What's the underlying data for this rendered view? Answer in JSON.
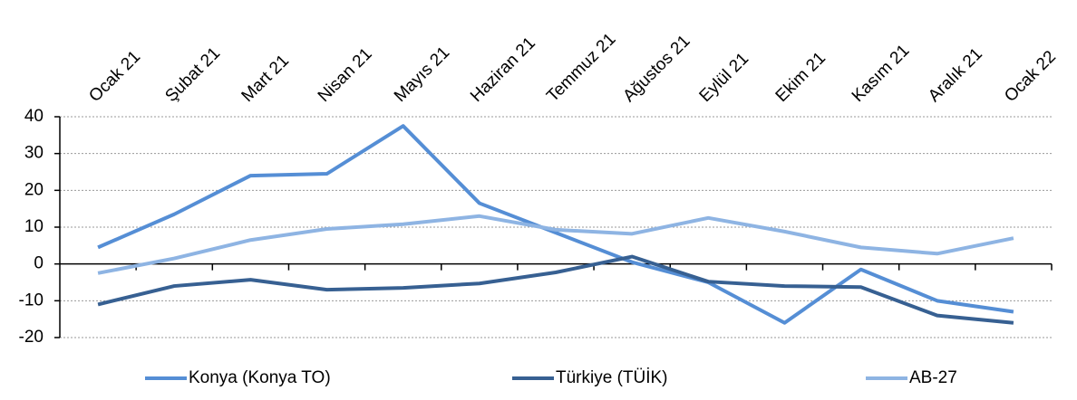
{
  "chart_data": {
    "type": "line",
    "categories": [
      "Ocak 21",
      "Şubat 21",
      "Mart 21",
      "Nisan 21",
      "Mayıs 21",
      "Haziran 21",
      "Temmuz 21",
      "Ağustos 21",
      "Eylül 21",
      "Ekim 21",
      "Kasım 21",
      "Aralık 21",
      "Ocak 22"
    ],
    "series": [
      {
        "name": "Konya (Konya TO)",
        "color": "#558ed5",
        "values": [
          4.5,
          13.5,
          24,
          24.5,
          37.5,
          16.5,
          8.5,
          0.5,
          -5,
          -16,
          -1.5,
          -10,
          -13
        ]
      },
      {
        "name": "Türkiye (TÜİK)",
        "color": "#376092",
        "values": [
          -11,
          -6,
          -4.3,
          -7,
          -6.5,
          -5.3,
          -2.3,
          2,
          -4.8,
          -6,
          -6.3,
          -14,
          -16
        ]
      },
      {
        "name": "AB-27",
        "color": "#8eb4e3",
        "values": [
          -2.5,
          1.5,
          6.5,
          9.5,
          10.8,
          13,
          9.3,
          8.2,
          12.5,
          8.8,
          4.5,
          2.8,
          7
        ]
      }
    ],
    "ylim": [
      -20,
      40
    ],
    "yticks": [
      -20,
      -10,
      0,
      10,
      20,
      30,
      40
    ],
    "grid": true,
    "legend": "bottom"
  }
}
